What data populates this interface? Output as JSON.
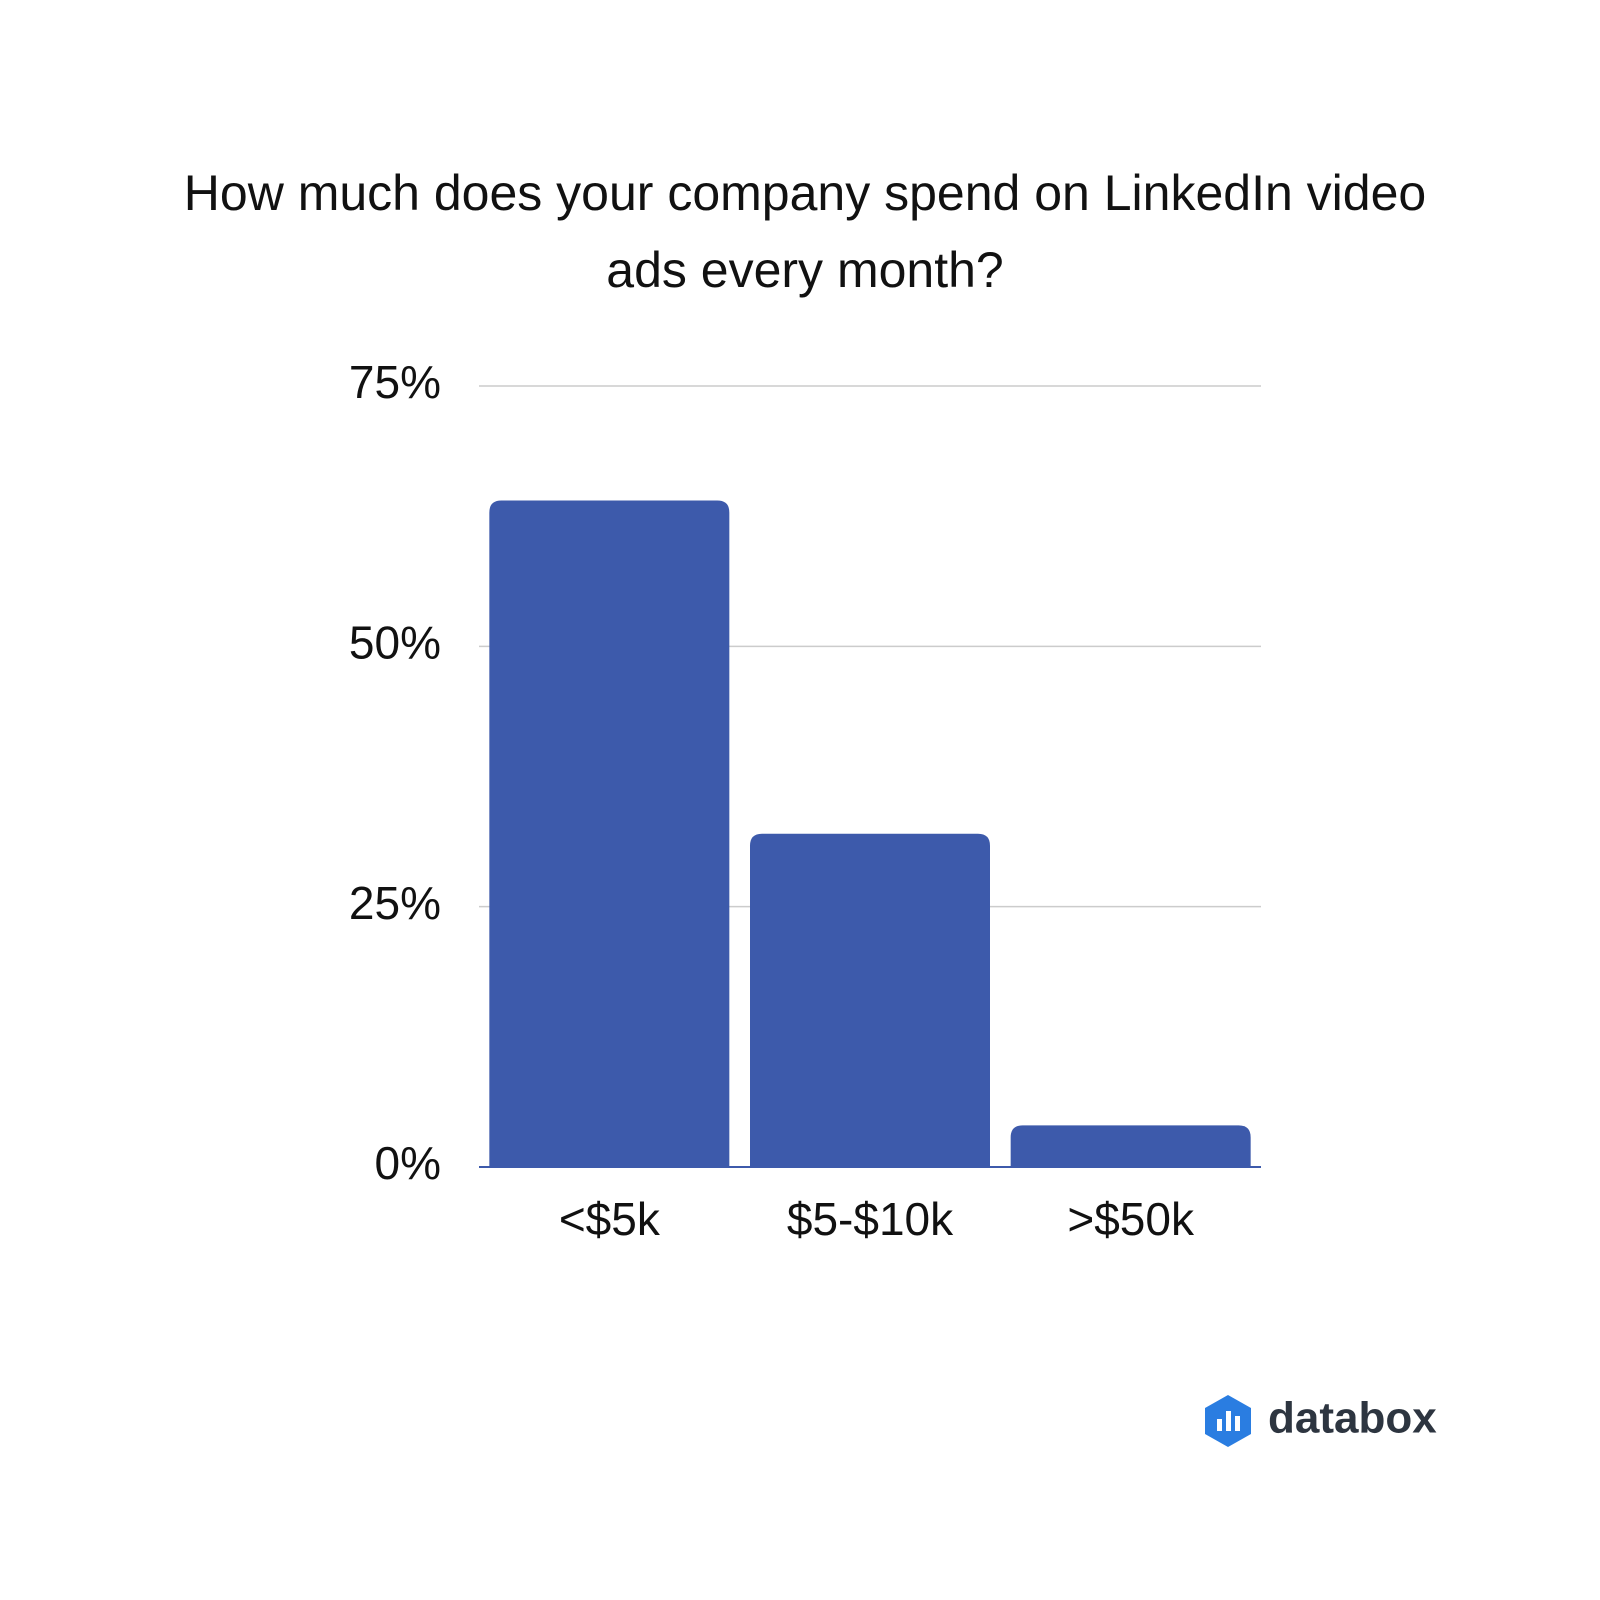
{
  "chart_data": {
    "type": "bar",
    "title": "How much does your company spend on LinkedIn video ads every month?",
    "categories": [
      "<$5k",
      "$5-$10k",
      ">$50k"
    ],
    "values": [
      64,
      32,
      4
    ],
    "color": "#3d5aab",
    "ylim": [
      0,
      75
    ],
    "yticks": [
      {
        "value": 0,
        "label": "0%"
      },
      {
        "value": 25,
        "label": "25%"
      },
      {
        "value": 50,
        "label": "50%"
      },
      {
        "value": 75,
        "label": "75%"
      }
    ],
    "grid": true
  },
  "brand": "databox"
}
